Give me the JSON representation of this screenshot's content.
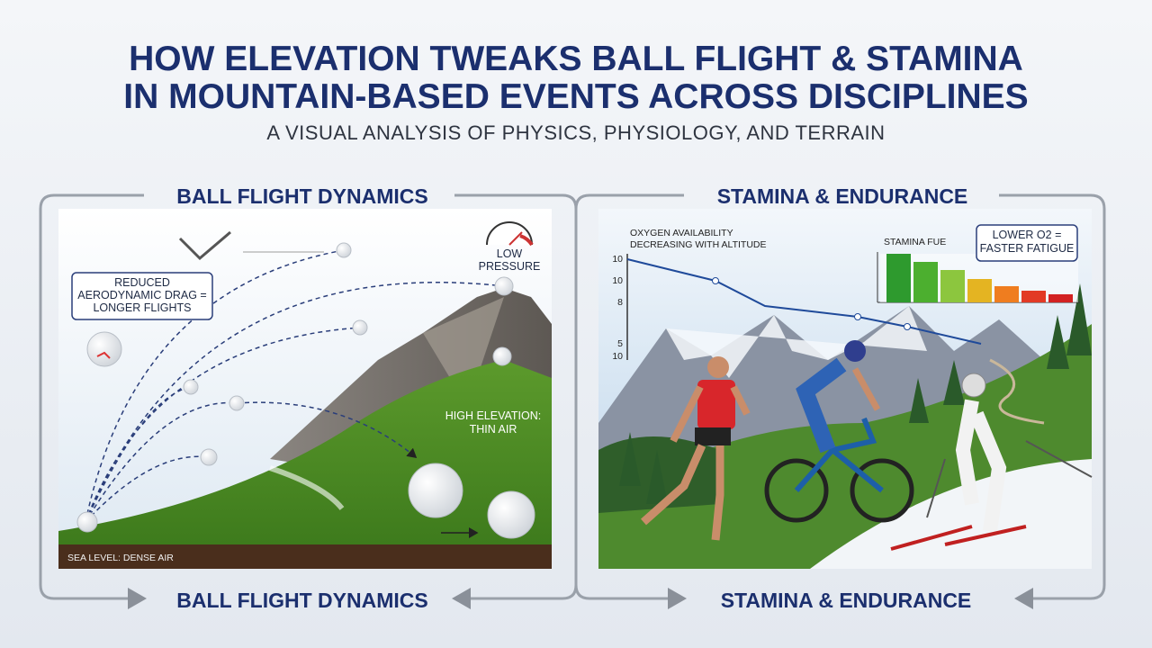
{
  "header": {
    "title_lines": [
      "HOW ELEVATION TWEAKS BALL FLIGHT & STAMINA",
      "IN MOUNTAIN-BASED EVENTS ACROSS DISCIPLINES"
    ],
    "subtitle": "A VISUAL ANALYSIS OF PHYSICS, PHYSIOLOGY, AND TERRAIN"
  },
  "ball_flight_panel": {
    "heading_top": "BALL FLIGHT DYNAMICS",
    "heading_bottom": "BALL FLIGHT DYNAMICS",
    "drag_callout": [
      "REDUCED",
      "AERODYNAMIC DRAG =",
      "LONGER FLIGHTS"
    ],
    "pressure_label": [
      "LOW",
      "PRESSURE"
    ],
    "elevation_label": [
      "HIGH ELEVATION:",
      "THIN AIR"
    ],
    "sea_level_label": "SEA LEVEL: DENSE AIR"
  },
  "stamina_panel": {
    "heading_top": "STAMINA & ENDURANCE",
    "heading_bottom": "STAMINA & ENDURANCE",
    "oxygen_chart_title": [
      "OXYGEN AVAILABILITY",
      "DECREASING WITH ALTITUDE"
    ],
    "oxygen_axis_labels": [
      "10",
      "10",
      "8",
      "5",
      "10"
    ],
    "stamina_chart_title": "STAMINA FUE",
    "fatigue_callout": [
      "LOWER O2 =",
      "FASTER FATIGUE"
    ]
  }
}
